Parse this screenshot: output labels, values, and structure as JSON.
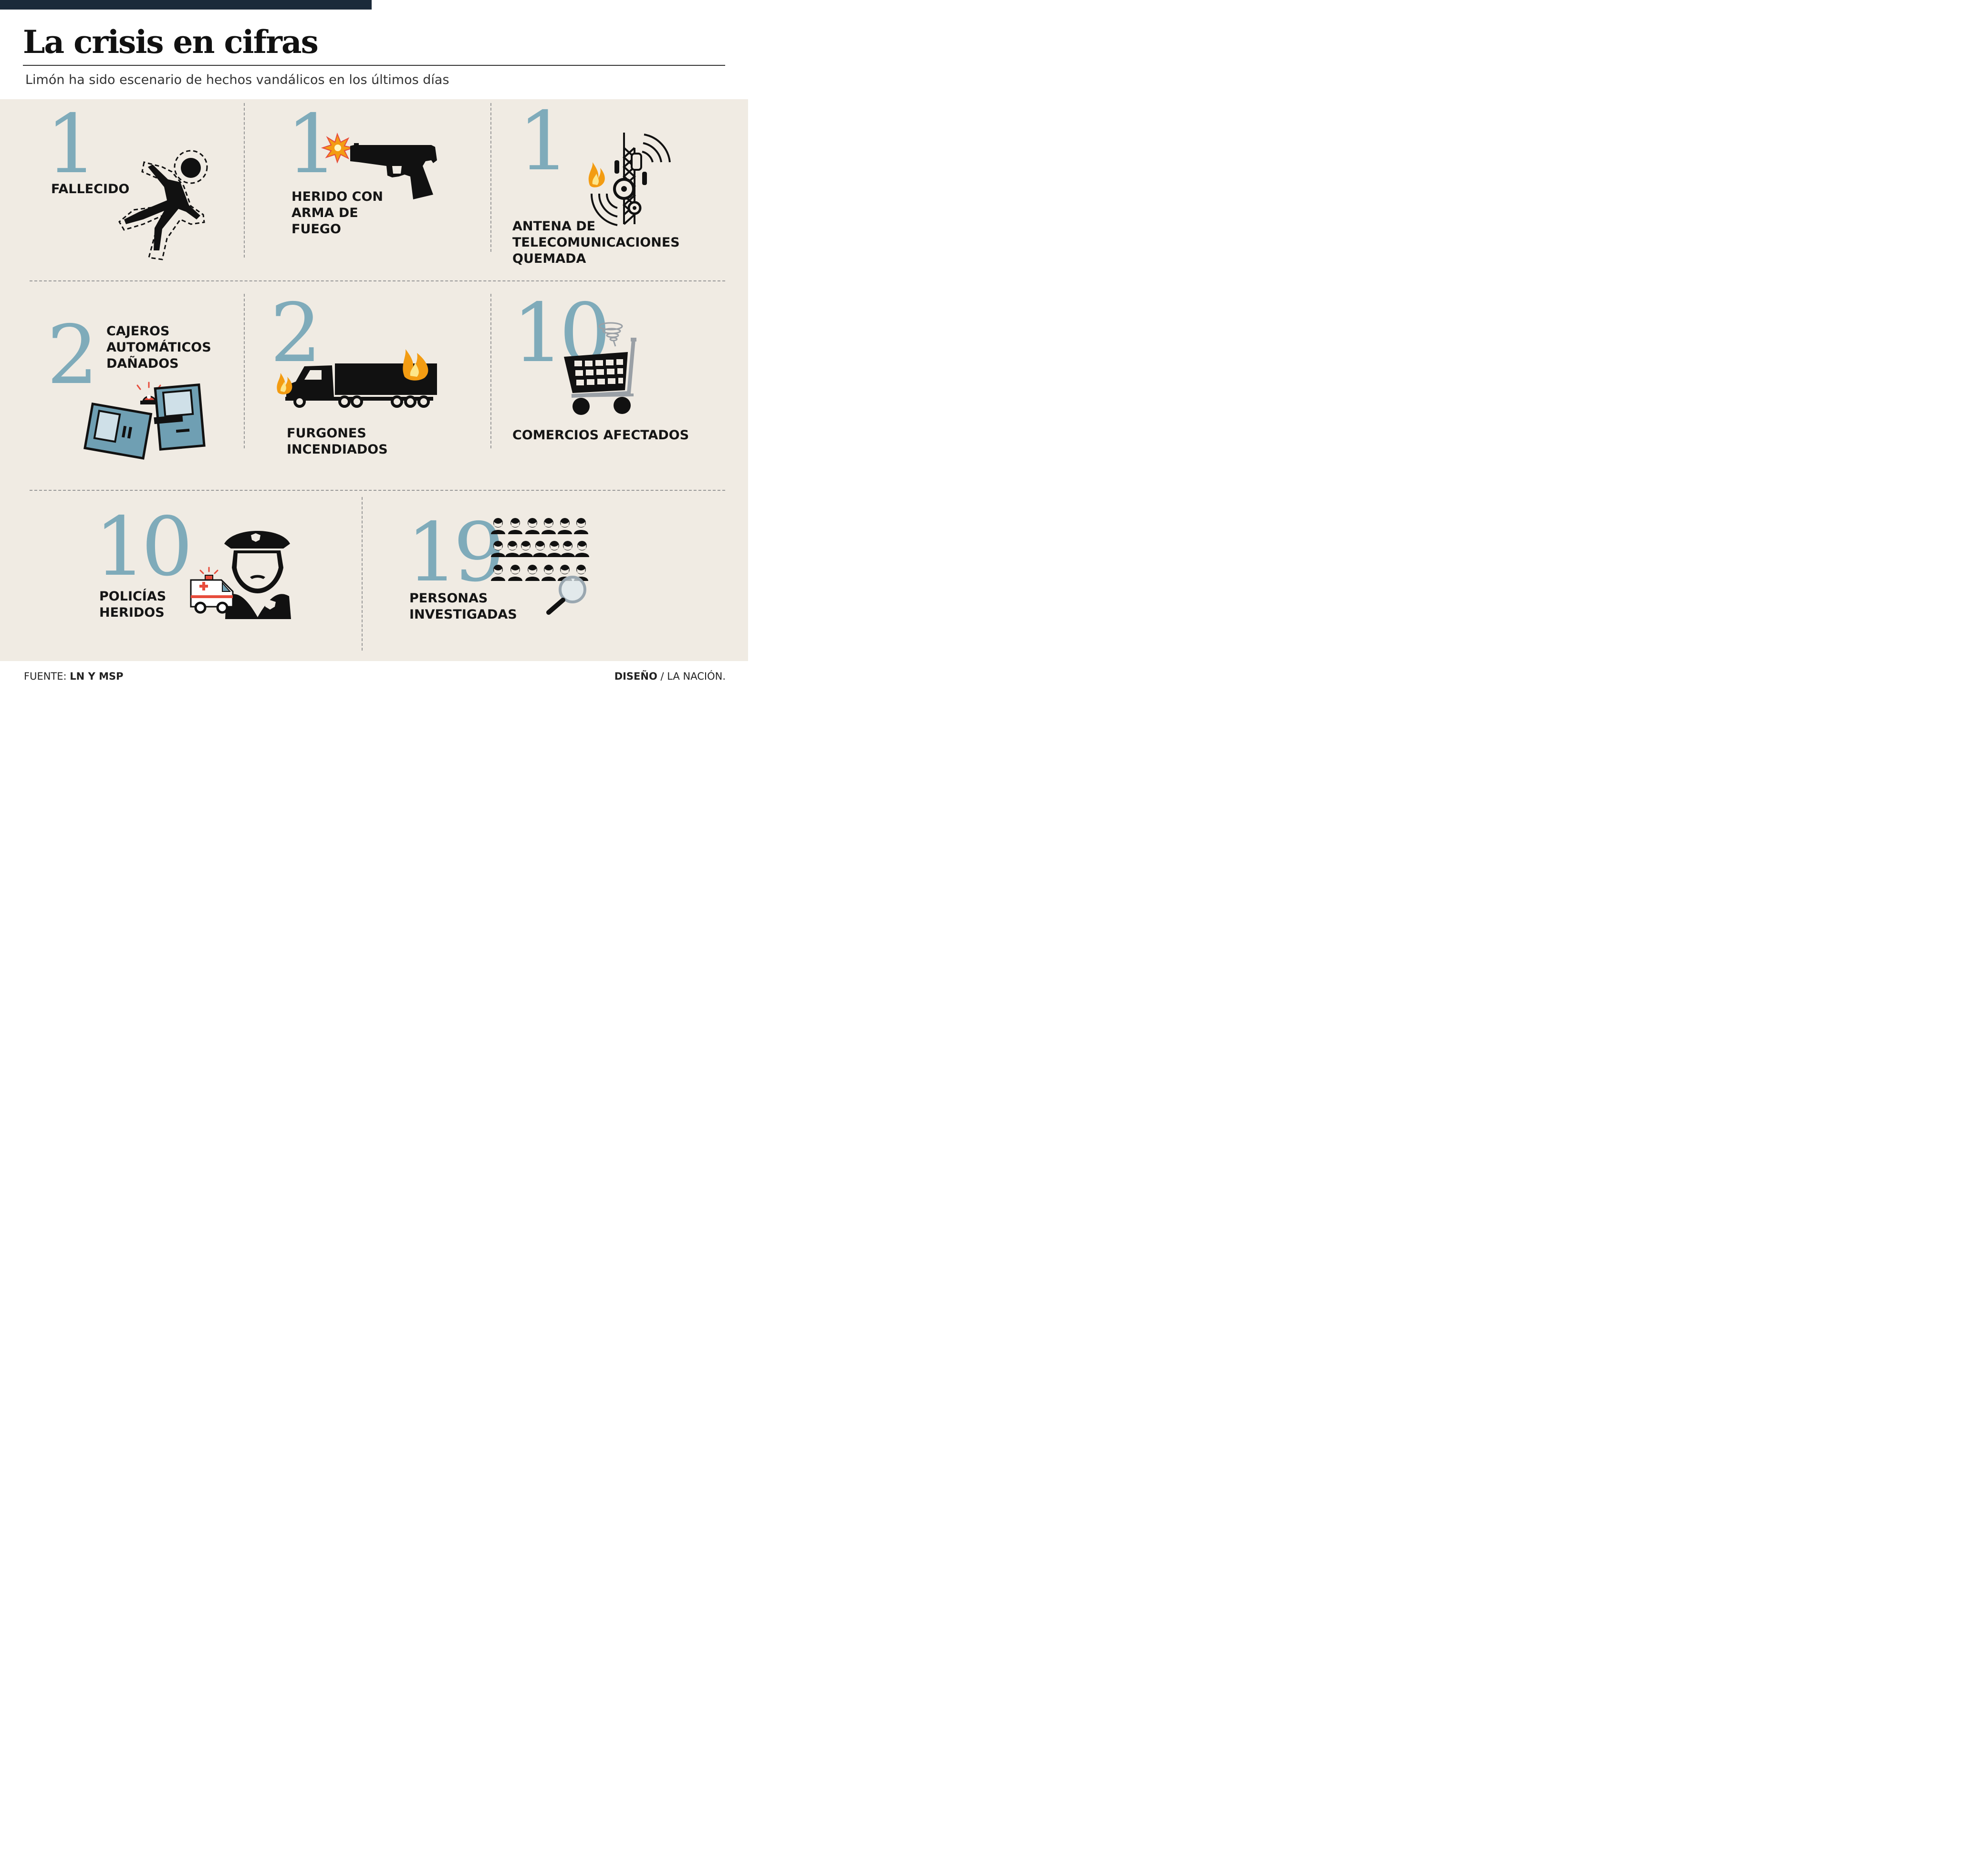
{
  "header": {
    "title": "La crisis en cifras",
    "subtitle": "Limón ha sido escenario de hechos vandálicos en los últimos días"
  },
  "stats": [
    {
      "number": "1",
      "label": "FALLECIDO",
      "icon": "fallen-person-icon"
    },
    {
      "number": "1",
      "label": "HERIDO CON\nARMA DE\nFUEGO",
      "icon": "pistol-icon"
    },
    {
      "number": "1",
      "label": "ANTENA DE\nTELECOMUNICACIONES\nQUEMADA",
      "icon": "burning-antenna-icon"
    },
    {
      "number": "2",
      "label": "CAJEROS\nAUTOMÁTICOS\nDAÑADOS",
      "icon": "atm-icon"
    },
    {
      "number": "2",
      "label": "FURGONES\nINCENDIADOS",
      "icon": "burning-truck-icon"
    },
    {
      "number": "10",
      "label": "COMERCIOS AFECTADOS",
      "icon": "shopping-cart-icon"
    },
    {
      "number": "10",
      "label": "POLICÍAS\nHERIDOS",
      "icon": "police-officer-icon"
    },
    {
      "number": "19",
      "label": "PERSONAS\nINVESTIGADAS",
      "icon": "people-magnifier-icon"
    }
  ],
  "footer": {
    "source_label": "FUENTE:",
    "source_value": "LN Y MSP",
    "design_label": "DISEÑO",
    "separator": "/",
    "design_value": "LA NACIÓN."
  },
  "colors": {
    "number": "#7fabba",
    "panel_bg": "#f0ebe3",
    "top_bar": "#1b2a3a",
    "flame": "#f39c12",
    "atm": "#6f9fb3",
    "siren": "#e74c3c"
  }
}
